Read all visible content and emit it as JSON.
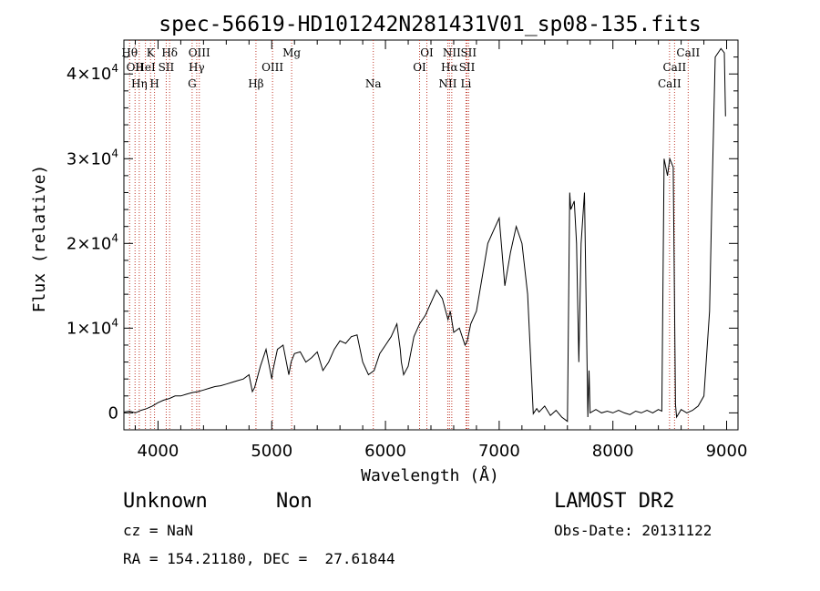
{
  "chart_data": {
    "type": "line",
    "title": "spec-56619-HD101242N281431V01_sp08-135.fits",
    "xlabel": "Wavelength (Å)",
    "ylabel": "Flux (relative)",
    "xlim": [
      3700,
      9100
    ],
    "ylim": [
      -2000,
      44000
    ],
    "x_ticks": [
      4000,
      5000,
      6000,
      7000,
      8000,
      9000
    ],
    "x_tick_labels": [
      "4000",
      "5000",
      "6000",
      "7000",
      "8000",
      "9000"
    ],
    "y_ticks": [
      0,
      10000,
      20000,
      30000,
      40000
    ],
    "y_tick_labels": [
      {
        "mantissa": "0",
        "exp": ""
      },
      {
        "mantissa": "1×10",
        "exp": "4"
      },
      {
        "mantissa": "2×10",
        "exp": "4"
      },
      {
        "mantissa": "3×10",
        "exp": "4"
      },
      {
        "mantissa": "4×10",
        "exp": "4"
      }
    ],
    "grid": false,
    "series": [
      {
        "x": [
          3700,
          3750,
          3800,
          3850,
          3900,
          3950,
          4000,
          4050,
          4100,
          4150,
          4200,
          4250,
          4300,
          4350,
          4400,
          4450,
          4500,
          4550,
          4600,
          4650,
          4700,
          4750,
          4800,
          4830,
          4850,
          4870,
          4900,
          4950,
          5000,
          5010,
          5050,
          5100,
          5150,
          5170,
          5200,
          5250,
          5300,
          5350,
          5400,
          5450,
          5500,
          5550,
          5600,
          5650,
          5700,
          5750,
          5800,
          5850,
          5900,
          5950,
          6000,
          6050,
          6100,
          6130,
          6140,
          6160,
          6200,
          6250,
          6300,
          6350,
          6400,
          6450,
          6500,
          6550,
          6570,
          6600,
          6650,
          6700,
          6720,
          6750,
          6800,
          6850,
          6900,
          6950,
          7000,
          7050,
          7100,
          7150,
          7200,
          7250,
          7300,
          7330,
          7350,
          7400,
          7450,
          7500,
          7550,
          7600,
          7620,
          7630,
          7660,
          7680,
          7700,
          7720,
          7750,
          7780,
          7790,
          7800,
          7850,
          7900,
          7950,
          8000,
          8050,
          8100,
          8150,
          8200,
          8250,
          8300,
          8350,
          8400,
          8430,
          8450,
          8480,
          8500,
          8530,
          8550,
          8560,
          8600,
          8650,
          8700,
          8750,
          8800,
          8850,
          8870,
          8900,
          8950,
          8980,
          8990
        ],
        "y": [
          100,
          200,
          0,
          300,
          500,
          800,
          1200,
          1500,
          1700,
          2000,
          2000,
          2200,
          2400,
          2500,
          2700,
          2900,
          3100,
          3200,
          3400,
          3600,
          3800,
          4000,
          4500,
          2500,
          3000,
          4000,
          5500,
          7500,
          4000,
          5000,
          7500,
          8000,
          4500,
          6000,
          7000,
          7200,
          6000,
          6500,
          7200,
          5000,
          6000,
          7500,
          8500,
          8200,
          9000,
          9200,
          6000,
          4500,
          5000,
          7000,
          8000,
          9000,
          10500,
          7500,
          6000,
          4500,
          5500,
          9000,
          10500,
          11500,
          13000,
          14500,
          13500,
          11000,
          12000,
          9500,
          10000,
          8000,
          8500,
          10500,
          12000,
          16000,
          20000,
          21500,
          23000,
          15000,
          19000,
          22000,
          20000,
          14000,
          -100,
          500,
          100,
          800,
          -300,
          300,
          -500,
          -1000,
          26000,
          24000,
          25000,
          20000,
          6000,
          20000,
          26000,
          -500,
          5000,
          0,
          400,
          0,
          200,
          0,
          300,
          0,
          -200,
          200,
          0,
          300,
          0,
          400,
          200,
          30000,
          28000,
          30000,
          29000,
          1000,
          -500,
          400,
          0,
          300,
          800,
          2000,
          12000,
          25000,
          42000,
          43000,
          42500,
          35000
        ]
      }
    ],
    "lines": [
      {
        "x": 3750,
        "label": "Hθ",
        "row": 1
      },
      {
        "x": 3798,
        "label": "OII",
        "row": 2
      },
      {
        "x": 3835,
        "label": "Hη",
        "row": 3
      },
      {
        "x": 3889,
        "label": "HeI",
        "row": 2
      },
      {
        "x": 3934,
        "label": "K",
        "row": 1
      },
      {
        "x": 3969,
        "label": "H",
        "row": 3
      },
      {
        "x": 4072,
        "label": "SII",
        "row": 2
      },
      {
        "x": 4102,
        "label": "Hδ",
        "row": 1
      },
      {
        "x": 4300,
        "label": "G",
        "row": 3
      },
      {
        "x": 4340,
        "label": "Hγ",
        "row": 2
      },
      {
        "x": 4363,
        "label": "OIII",
        "row": 1
      },
      {
        "x": 4861,
        "label": "Hβ",
        "row": 3
      },
      {
        "x": 5007,
        "label": "OIII",
        "row": 2
      },
      {
        "x": 5175,
        "label": "Mg",
        "row": 1
      },
      {
        "x": 5893,
        "label": "Na",
        "row": 3
      },
      {
        "x": 6300,
        "label": "OI",
        "row": 2
      },
      {
        "x": 6364,
        "label": "OI",
        "row": 1
      },
      {
        "x": 6548,
        "label": "NII",
        "row": 3
      },
      {
        "x": 6563,
        "label": "Hα",
        "row": 2
      },
      {
        "x": 6583,
        "label": "NII",
        "row": 1
      },
      {
        "x": 6708,
        "label": "Li",
        "row": 3
      },
      {
        "x": 6717,
        "label": "SII",
        "row": 2
      },
      {
        "x": 6731,
        "label": "SII",
        "row": 1
      },
      {
        "x": 8498,
        "label": "CaII",
        "row": 3
      },
      {
        "x": 8542,
        "label": "CaII",
        "row": 2
      },
      {
        "x": 8662,
        "label": "CaII",
        "row": 1
      }
    ]
  },
  "info": {
    "object_class": "Unknown",
    "object_subclass": "Non",
    "cz": "cz = NaN",
    "coords": "RA = 154.21180, DEC =  27.61844",
    "survey": "LAMOST DR2",
    "obs_date": "Obs-Date: 20131122"
  }
}
